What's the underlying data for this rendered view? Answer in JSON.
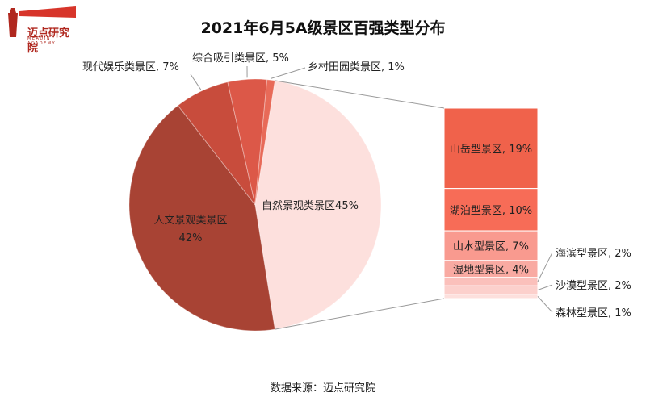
{
  "logo": {
    "text": "迈点研究院",
    "sub": "MEADIN ACADEMY"
  },
  "colors": {
    "logo": "#b0281f",
    "connector": "#999999"
  },
  "chart_data": {
    "type": "bar-of-pie",
    "title": "2021年6月5A级景区百强类型分布",
    "pie": {
      "slices": [
        {
          "label": "自然景观类景区45%",
          "value": 45,
          "color": "#fde0dd"
        },
        {
          "label": "人文景观类景区\n42%",
          "value": 42,
          "color": "#a84334"
        },
        {
          "label": "现代娱乐类景区, 7%",
          "value": 7,
          "color": "#c84c3c"
        },
        {
          "label": "综合吸引类景区, 5%",
          "value": 5,
          "color": "#dc5848"
        },
        {
          "label": "乡村田园类景区, 1%",
          "value": 1,
          "color": "#e86a58"
        }
      ]
    },
    "breakdown": {
      "of": "自然景观类景区45%",
      "items": [
        {
          "label": "山岳型景区, 19%",
          "value": 19,
          "color": "#f0624b"
        },
        {
          "label": "湖泊型景区, 10%",
          "value": 10,
          "color": "#f76c57"
        },
        {
          "label": "山水型景区, 7%",
          "value": 7,
          "color": "#f99a8f"
        },
        {
          "label": "湿地型景区, 4%",
          "value": 4,
          "color": "#f9aaa2"
        },
        {
          "label": "海滨型景区, 2%",
          "value": 2,
          "color": "#fbc0bb"
        },
        {
          "label": "沙漠型景区, 2%",
          "value": 2,
          "color": "#fcd0cc"
        },
        {
          "label": "森林型景区, 1%",
          "value": 1,
          "color": "#fde0dd"
        }
      ]
    },
    "source": "数据来源：迈点研究院"
  }
}
